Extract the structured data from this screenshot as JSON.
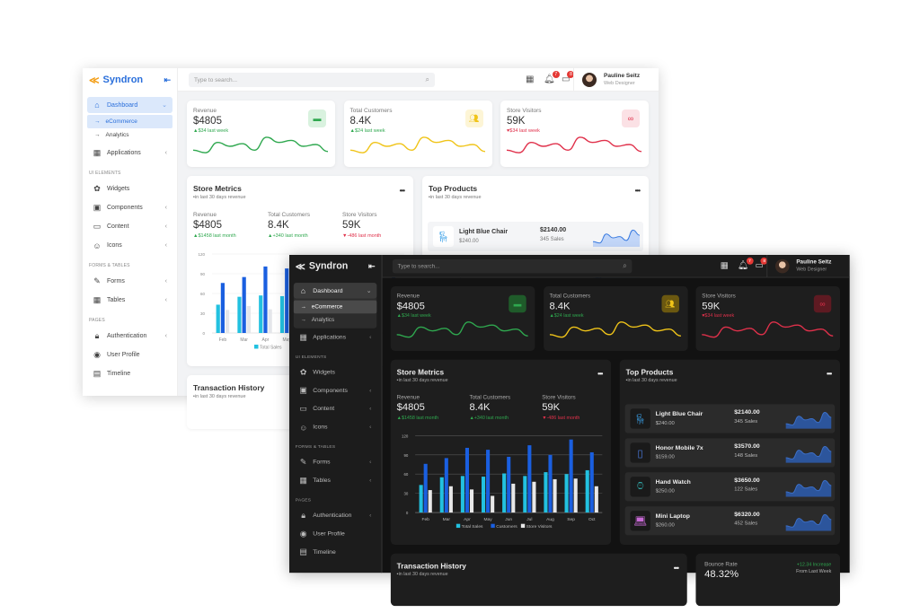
{
  "brand": "Syndron",
  "search": {
    "placeholder": "Type to search..."
  },
  "user": {
    "name": "Pauline Seitz",
    "role": "Web Designer"
  },
  "badges": {
    "notifications": "7",
    "messages": "8"
  },
  "sidebar": {
    "dashboard": {
      "label": "Dashboard",
      "icon": "home-icon",
      "sub": [
        "eCommerce",
        "Analytics"
      ]
    },
    "entries": [
      {
        "type": "item",
        "label": "Applications",
        "icon": "grid-icon",
        "chevron": true
      },
      {
        "type": "section",
        "label": "UI ELEMENTS"
      },
      {
        "type": "item",
        "label": "Widgets",
        "icon": "widgets-icon",
        "chevron": false
      },
      {
        "type": "item",
        "label": "Components",
        "icon": "components-icon",
        "chevron": true
      },
      {
        "type": "item",
        "label": "Content",
        "icon": "content-icon",
        "chevron": true
      },
      {
        "type": "item",
        "label": "Icons",
        "icon": "icons-icon",
        "chevron": true
      },
      {
        "type": "section",
        "label": "FORMS & TABLES"
      },
      {
        "type": "item",
        "label": "Forms",
        "icon": "forms-icon",
        "chevron": true
      },
      {
        "type": "item",
        "label": "Tables",
        "icon": "tables-icon",
        "chevron": true
      },
      {
        "type": "section",
        "label": "PAGES"
      },
      {
        "type": "item",
        "label": "Authentication",
        "icon": "lock-icon",
        "chevron": true
      },
      {
        "type": "item",
        "label": "User Profile",
        "icon": "user-icon",
        "chevron": false
      },
      {
        "type": "item",
        "label": "Timeline",
        "icon": "timeline-icon",
        "chevron": false
      }
    ]
  },
  "stat_cards": [
    {
      "label": "Revenue",
      "value": "$4805",
      "change": "$34 last week",
      "direction": "up",
      "color": "#2fa84f",
      "icon": "wallet-icon",
      "trend": [
        3,
        2,
        6,
        4.5,
        5.5,
        3,
        8,
        6,
        6.8,
        4.5,
        5.2,
        2.5
      ]
    },
    {
      "label": "Total Customers",
      "value": "8.4K",
      "change": "$24 last week",
      "direction": "up",
      "color": "#f0c419",
      "icon": "users-icon",
      "trend": [
        3,
        2,
        6,
        4.5,
        5.5,
        3,
        8,
        6,
        6.8,
        4.5,
        5.2,
        2.5
      ]
    },
    {
      "label": "Store Visitors",
      "value": "59K",
      "change": "$34 last week",
      "direction": "down",
      "color": "#e0314b",
      "icon": "binoculars-icon",
      "trend": [
        3,
        2,
        6,
        4.5,
        5.5,
        3,
        8,
        6,
        6.8,
        4.5,
        5.2,
        2.5
      ]
    }
  ],
  "store_metrics": {
    "title": "Store Metrics",
    "subtitle": "in last 30 days revenue",
    "stats": [
      {
        "label": "Revenue",
        "value": "$4805",
        "change": "$1458 last month",
        "direction": "up"
      },
      {
        "label": "Total Customers",
        "value": "8.4K",
        "change": "+340 last month",
        "direction": "up"
      },
      {
        "label": "Store Visitors",
        "value": "59K",
        "change": "-486 last month",
        "direction": "down"
      }
    ]
  },
  "chart_data": {
    "type": "bar",
    "categories": [
      "Feb",
      "Mar",
      "Apr",
      "May",
      "Jun",
      "Jul",
      "Aug",
      "Sep",
      "Oct"
    ],
    "series": [
      {
        "name": "Total Sales",
        "color": "#22c1e0",
        "values": [
          43,
          55,
          57,
          56,
          61,
          57,
          63,
          60,
          66
        ]
      },
      {
        "name": "Customers",
        "color": "#1a5fe0",
        "values": [
          76,
          85,
          101,
          98,
          87,
          105,
          90,
          114,
          94
        ]
      },
      {
        "name": "Store Visitors",
        "color": "#e8e8e8",
        "values": [
          35,
          41,
          36,
          26,
          45,
          48,
          52,
          53,
          41
        ]
      }
    ],
    "ylim": [
      0,
      120
    ],
    "yticks": [
      0,
      30,
      60,
      90,
      120
    ],
    "grid": true,
    "legend": "bottom"
  },
  "top_products": {
    "title": "Top Products",
    "subtitle": "in last 30 days revenue",
    "items": [
      {
        "name": "Light Blue Chair",
        "price": "$240.00",
        "total": "$2140.00",
        "sales": "345 Sales",
        "icon": "chair-icon",
        "trend": [
          2,
          1.5,
          5,
          3.5,
          4,
          2.5,
          6.5,
          4.5
        ]
      },
      {
        "name": "Honor Mobile 7x",
        "price": "$159.00",
        "total": "$3570.00",
        "sales": "148 Sales",
        "icon": "phone-icon",
        "trend": [
          2,
          1.5,
          5,
          3.5,
          4,
          2.5,
          6.5,
          4.5
        ]
      },
      {
        "name": "Hand Watch",
        "price": "$250.00",
        "total": "$3650.00",
        "sales": "122 Sales",
        "icon": "watch-icon",
        "trend": [
          2,
          1.5,
          5,
          3.5,
          4,
          2.5,
          6.5,
          4.5
        ]
      },
      {
        "name": "Mini Laptop",
        "price": "$260.00",
        "total": "$6320.00",
        "sales": "452 Sales",
        "icon": "laptop-icon",
        "trend": [
          2,
          1.5,
          5,
          3.5,
          4,
          2.5,
          6.5,
          4.5
        ]
      }
    ]
  },
  "transaction_history": {
    "title": "Transaction History",
    "subtitle": "in last 30 days revenue"
  },
  "bounce_rate": {
    "label": "Bounce Rate",
    "value": "48.32%",
    "change": "+12.34 Increase",
    "period": "From Last Week"
  },
  "menu_glyph": "•••"
}
